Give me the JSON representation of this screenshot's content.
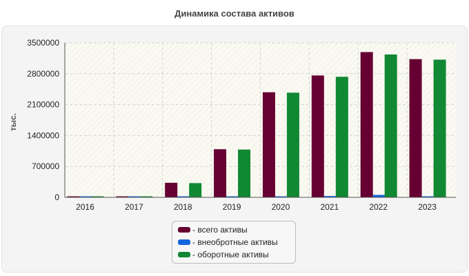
{
  "chart_data": {
    "type": "bar",
    "title": "Динамика состава активов",
    "ylabel": "тыс.",
    "xlabel": "",
    "categories": [
      "2016",
      "2017",
      "2018",
      "2019",
      "2020",
      "2021",
      "2022",
      "2023"
    ],
    "ylim": [
      0,
      3500000
    ],
    "yticks": [
      0,
      700000,
      1400000,
      2100000,
      2800000,
      3500000
    ],
    "grid": true,
    "legend_position": "bottom",
    "series": [
      {
        "name": "- всего активы",
        "color": "#660033",
        "values": [
          15000,
          15000,
          330000,
          1090000,
          2380000,
          2760000,
          3290000,
          3130000
        ]
      },
      {
        "name": "- внеобротные активы",
        "color": "#1166dd",
        "values": [
          5000,
          5000,
          8000,
          8000,
          10000,
          30000,
          55000,
          12000
        ]
      },
      {
        "name": "- оборотные активы",
        "color": "#118833",
        "values": [
          10000,
          10000,
          322000,
          1082000,
          2370000,
          2730000,
          3235000,
          3118000
        ]
      }
    ]
  }
}
